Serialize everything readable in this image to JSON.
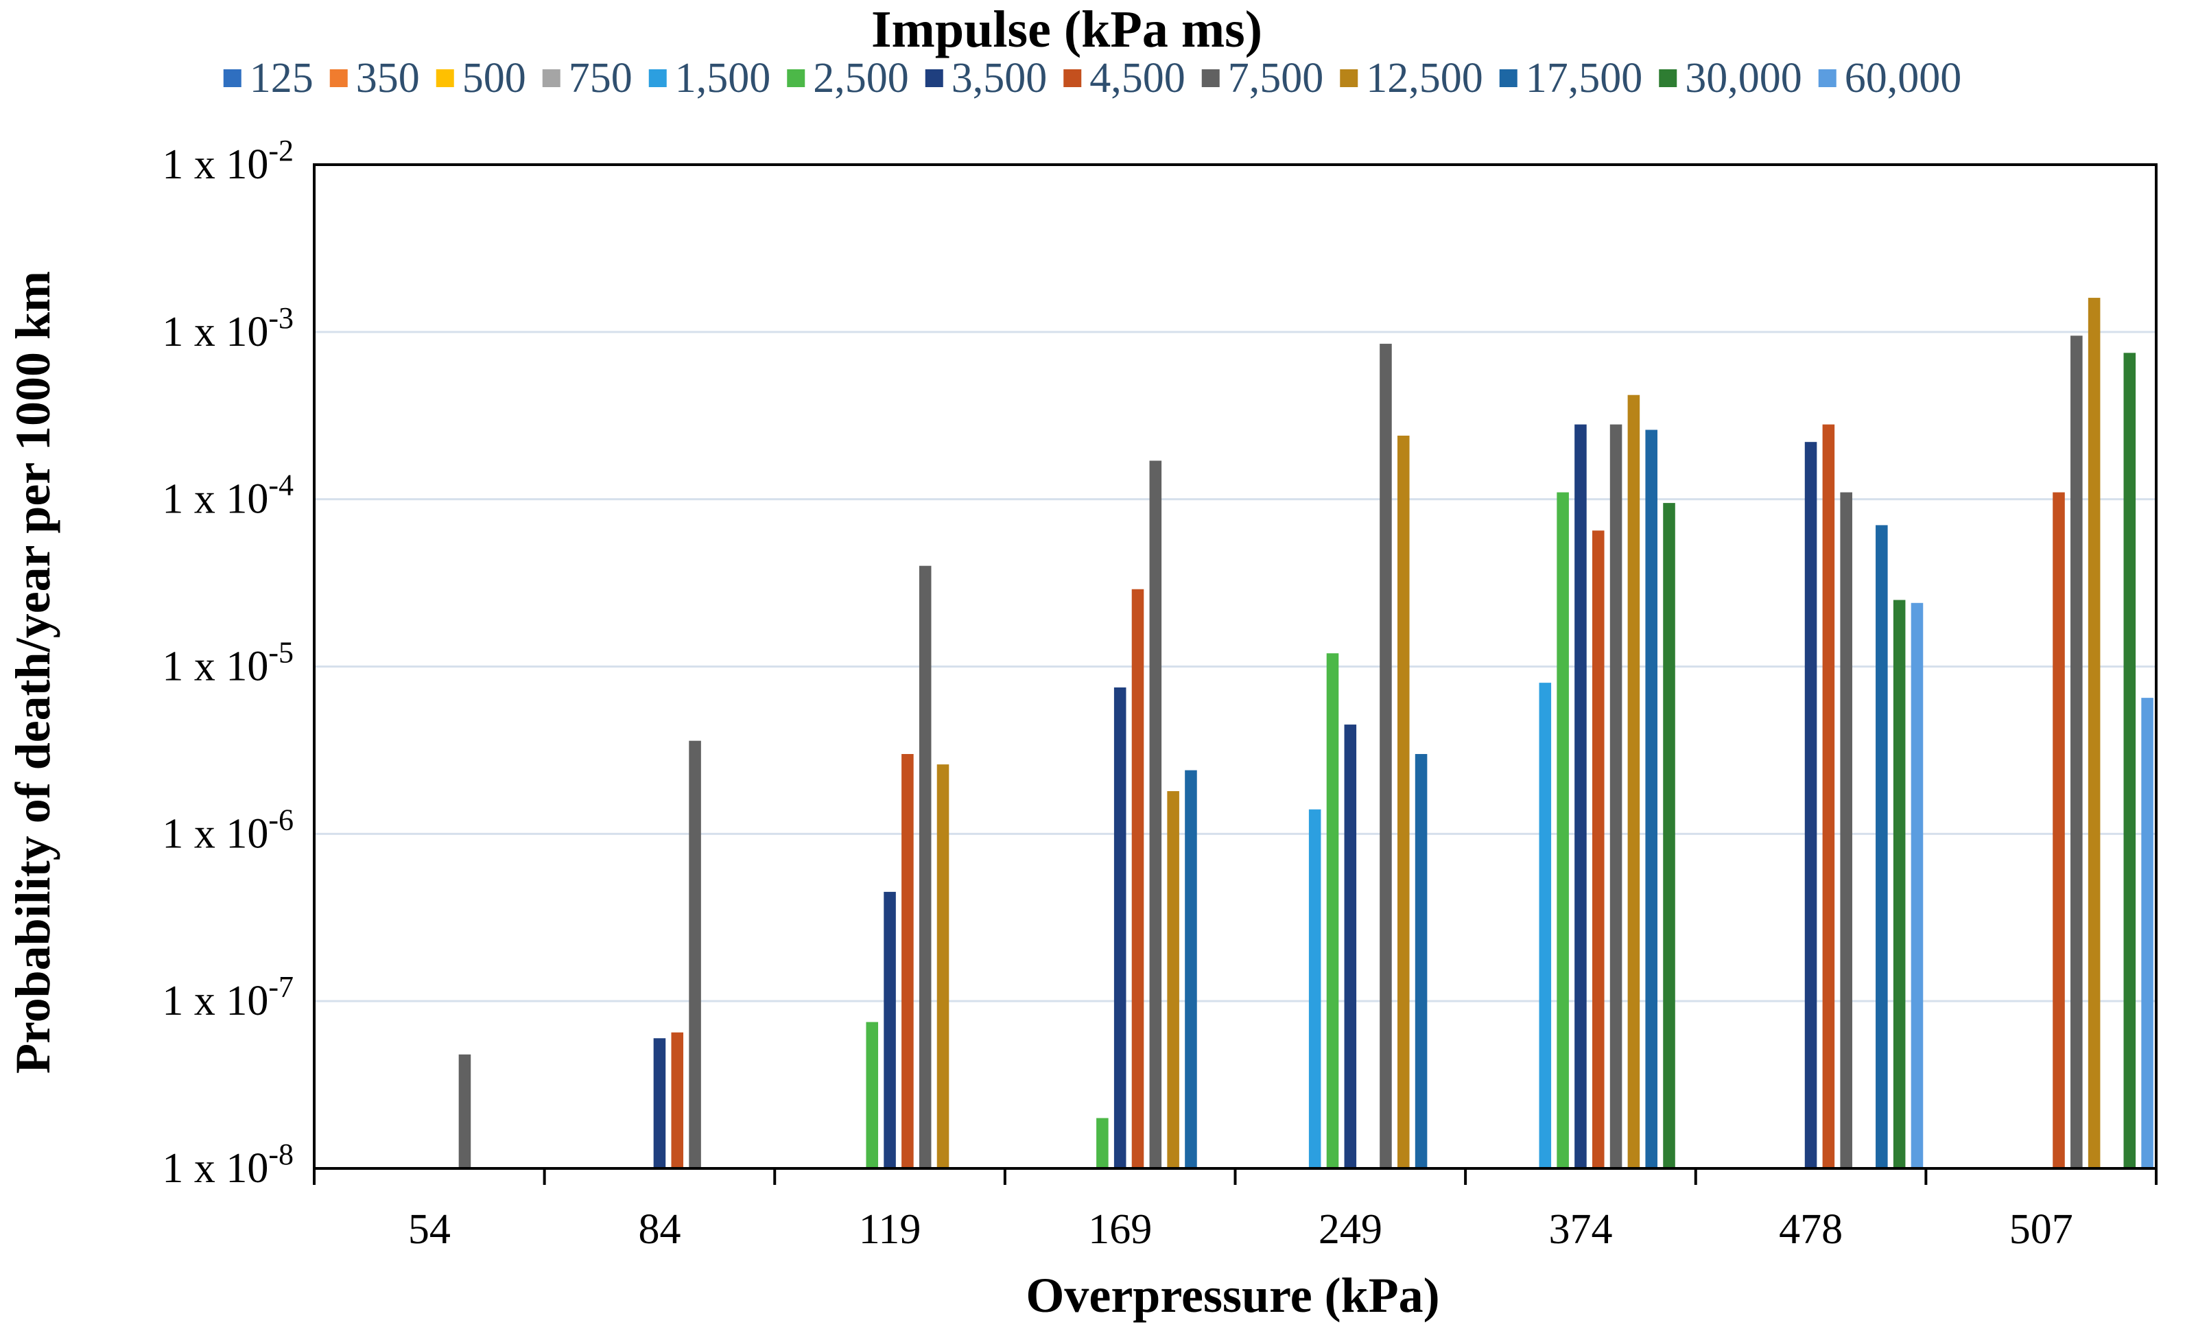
{
  "chart_data": {
    "type": "bar",
    "scale": "log",
    "title": "",
    "legend_title": "Impulse (kPa ms)",
    "legend_position": "top",
    "xlabel": "Overpressure (kPa)",
    "ylabel": "Probability of death/year per 1000 km",
    "ylim": [
      1e-08,
      0.01
    ],
    "grid": true,
    "y_ticks": [
      {
        "base": "1 x 10",
        "exp": "-8"
      },
      {
        "base": "1 x 10",
        "exp": "-7"
      },
      {
        "base": "1 x 10",
        "exp": "-6"
      },
      {
        "base": "1 x 10",
        "exp": "-5"
      },
      {
        "base": "1 x 10",
        "exp": "-4"
      },
      {
        "base": "1 x 10",
        "exp": "-3"
      },
      {
        "base": "1 x 10",
        "exp": "-2"
      }
    ],
    "categories": [
      "54",
      "84",
      "119",
      "169",
      "249",
      "374",
      "478",
      "507"
    ],
    "series": [
      {
        "name": "125",
        "color": "#2f6fc0",
        "values": [
          null,
          null,
          null,
          null,
          null,
          null,
          null,
          null
        ]
      },
      {
        "name": "350",
        "color": "#f07c2e",
        "values": [
          null,
          null,
          null,
          null,
          null,
          null,
          null,
          null
        ]
      },
      {
        "name": "500",
        "color": "#ffc000",
        "values": [
          null,
          null,
          null,
          null,
          null,
          null,
          null,
          null
        ]
      },
      {
        "name": "750",
        "color": "#a5a5a5",
        "values": [
          null,
          null,
          null,
          null,
          null,
          null,
          null,
          null
        ]
      },
      {
        "name": "1,500",
        "color": "#2c9fe0",
        "values": [
          null,
          null,
          null,
          null,
          1.4e-06,
          8e-06,
          null,
          null
        ]
      },
      {
        "name": "2,500",
        "color": "#4cb848",
        "values": [
          null,
          null,
          7.5e-08,
          2e-08,
          1.2e-05,
          0.00011,
          null,
          null
        ]
      },
      {
        "name": "3,500",
        "color": "#1f3f7f",
        "values": [
          null,
          6e-08,
          4.5e-07,
          7.5e-06,
          4.5e-06,
          0.00028,
          0.00022,
          null
        ]
      },
      {
        "name": "4,500",
        "color": "#c4501e",
        "values": [
          null,
          6.5e-08,
          3e-06,
          2.9e-05,
          null,
          6.5e-05,
          0.00028,
          0.00011
        ]
      },
      {
        "name": "7,500",
        "color": "#616161",
        "values": [
          4.8e-08,
          3.6e-06,
          4e-05,
          0.00017,
          0.00085,
          0.00028,
          0.00011,
          0.00095
        ]
      },
      {
        "name": "12,500",
        "color": "#b88418",
        "values": [
          null,
          null,
          2.6e-06,
          1.8e-06,
          0.00024,
          0.00042,
          null,
          0.0016
        ]
      },
      {
        "name": "17,500",
        "color": "#1d67a4",
        "values": [
          null,
          null,
          null,
          2.4e-06,
          3e-06,
          0.00026,
          7e-05,
          null
        ]
      },
      {
        "name": "30,000",
        "color": "#2e7d32",
        "values": [
          null,
          null,
          null,
          null,
          null,
          9.5e-05,
          2.5e-05,
          0.00075
        ]
      },
      {
        "name": "60,000",
        "color": "#5b9de0",
        "values": [
          null,
          null,
          null,
          null,
          null,
          null,
          2.4e-05,
          6.5e-06
        ]
      }
    ]
  }
}
